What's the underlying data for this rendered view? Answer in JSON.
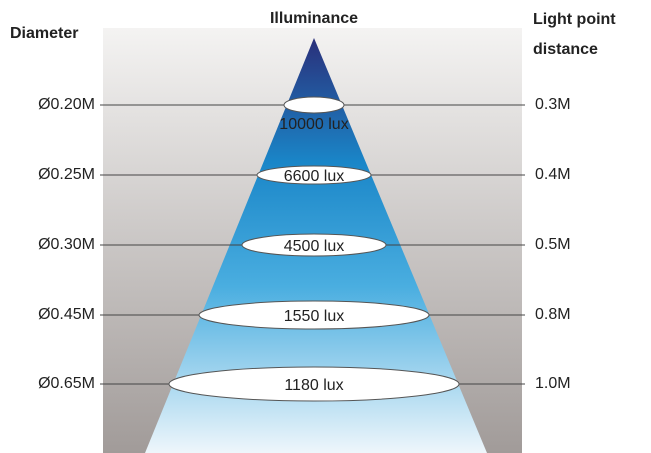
{
  "header": {
    "diameter": "Diameter",
    "illuminance": "Illuminance",
    "distance": [
      "Light point",
      "distance"
    ]
  },
  "rows": [
    {
      "diameter": "Ø0.20M",
      "illuminance": "10000 lux",
      "distance": "0.3M"
    },
    {
      "diameter": "Ø0.25M",
      "illuminance": "6600 lux",
      "distance": "0.4M"
    },
    {
      "diameter": "Ø0.30M",
      "illuminance": "4500 lux",
      "distance": "0.5M"
    },
    {
      "diameter": "Ø0.45M",
      "illuminance": "1550 lux",
      "distance": "0.8M"
    },
    {
      "diameter": "Ø0.65M",
      "illuminance": "1180 lux",
      "distance": "1.0M"
    }
  ]
}
